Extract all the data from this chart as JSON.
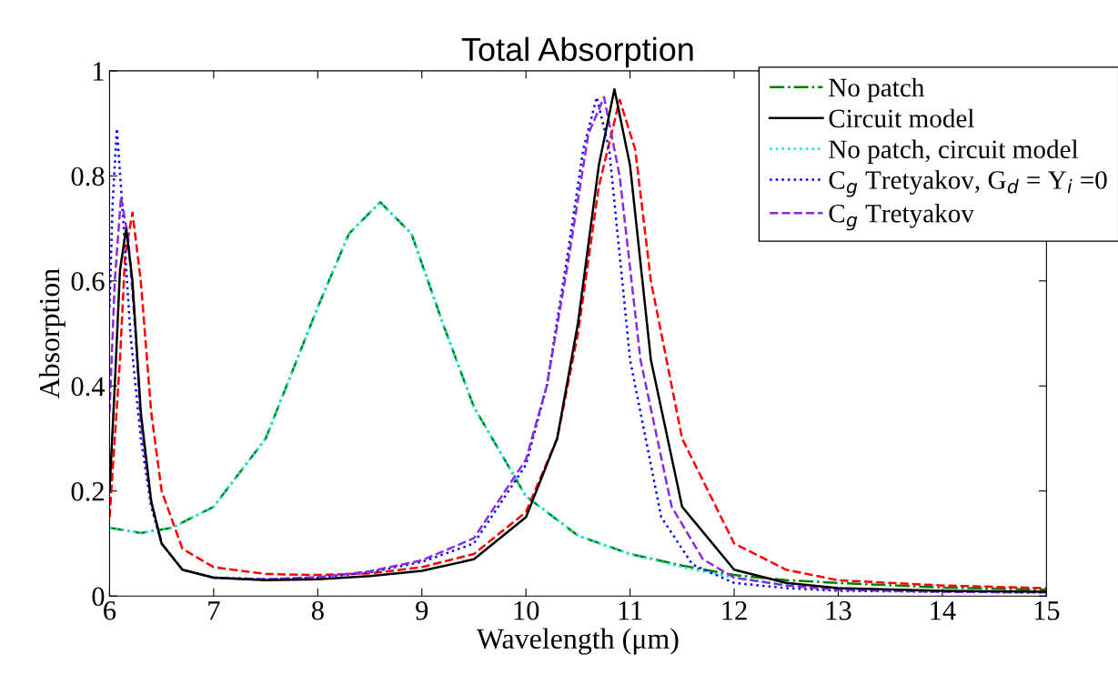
{
  "chart_data": {
    "type": "line",
    "title": "Total Absorption",
    "xlabel": "Wavelength (μm)",
    "ylabel": "Absorption",
    "xlim": [
      6,
      15
    ],
    "xticks": [
      6,
      7,
      8,
      9,
      10,
      11,
      12,
      13,
      14,
      15
    ],
    "ylim": [
      0,
      1
    ],
    "yticks": [
      0,
      0.2,
      0.4,
      0.6,
      0.8,
      1
    ],
    "grid": false,
    "legend": "top right",
    "series": [
      {
        "name": "No patch",
        "color": "#008000",
        "line_style": "dashdot",
        "x": [
          6,
          6.3,
          6.6,
          7,
          7.5,
          8,
          8.3,
          8.6,
          8.9,
          9.2,
          9.5,
          10,
          10.5,
          11,
          11.5,
          12,
          12.5,
          13,
          14,
          15
        ],
        "values": [
          0.13,
          0.12,
          0.13,
          0.17,
          0.3,
          0.55,
          0.69,
          0.75,
          0.69,
          0.52,
          0.36,
          0.19,
          0.115,
          0.08,
          0.058,
          0.04,
          0.03,
          0.025,
          0.016,
          0.012
        ]
      },
      {
        "name": "Circuit model",
        "color": "#000000",
        "line_style": "solid",
        "x": [
          6,
          6.05,
          6.1,
          6.16,
          6.22,
          6.3,
          6.4,
          6.5,
          6.7,
          7,
          7.5,
          8,
          8.5,
          9,
          9.5,
          10,
          10.3,
          10.5,
          10.7,
          10.85,
          11,
          11.2,
          11.5,
          12,
          12.5,
          13,
          14,
          15
        ],
        "values": [
          0.2,
          0.4,
          0.62,
          0.7,
          0.6,
          0.35,
          0.18,
          0.1,
          0.05,
          0.035,
          0.03,
          0.032,
          0.038,
          0.048,
          0.07,
          0.15,
          0.3,
          0.52,
          0.82,
          0.965,
          0.82,
          0.45,
          0.17,
          0.05,
          0.025,
          0.015,
          0.01,
          0.008
        ]
      },
      {
        "color": "#ff0000",
        "line_style": "dashed",
        "x": [
          6,
          6.1,
          6.15,
          6.22,
          6.3,
          6.4,
          6.5,
          6.7,
          7,
          7.5,
          8,
          8.5,
          9,
          9.5,
          10,
          10.3,
          10.5,
          10.7,
          10.9,
          11.05,
          11.2,
          11.5,
          12,
          12.5,
          13,
          14,
          15
        ],
        "values": [
          0.15,
          0.45,
          0.65,
          0.73,
          0.6,
          0.35,
          0.2,
          0.09,
          0.055,
          0.042,
          0.04,
          0.043,
          0.055,
          0.08,
          0.16,
          0.3,
          0.5,
          0.78,
          0.945,
          0.85,
          0.6,
          0.3,
          0.1,
          0.05,
          0.03,
          0.02,
          0.015
        ]
      },
      {
        "name": "No patch, circuit model",
        "color": "#00e5ee",
        "line_style": "dotted",
        "x": [
          6,
          6.3,
          6.6,
          7,
          7.5,
          8,
          8.3,
          8.6,
          8.9,
          9.2,
          9.5,
          10,
          10.5,
          11,
          11.5,
          12,
          12.5,
          13,
          14,
          15
        ],
        "values": [
          0.13,
          0.12,
          0.13,
          0.17,
          0.3,
          0.55,
          0.69,
          0.75,
          0.69,
          0.52,
          0.36,
          0.19,
          0.115,
          0.08,
          0.055,
          0.035,
          0.022,
          0.015,
          0.008,
          0.006
        ]
      },
      {
        "name": "C$_{g}$ Tretyakov, G$_{d}$ = Y$_{i}$ =0",
        "color": "#0000ff",
        "line_style": "dotted",
        "x": [
          6,
          6.03,
          6.07,
          6.12,
          6.2,
          6.3,
          6.4,
          6.5,
          6.7,
          7,
          7.5,
          8,
          8.5,
          9,
          9.5,
          10,
          10.2,
          10.4,
          10.55,
          10.68,
          10.8,
          11,
          11.3,
          11.6,
          12,
          12.5,
          13,
          14,
          15
        ],
        "values": [
          0.55,
          0.75,
          0.89,
          0.75,
          0.5,
          0.3,
          0.17,
          0.1,
          0.05,
          0.035,
          0.032,
          0.035,
          0.045,
          0.065,
          0.1,
          0.25,
          0.4,
          0.65,
          0.85,
          0.95,
          0.85,
          0.45,
          0.15,
          0.06,
          0.025,
          0.015,
          0.01,
          0.008,
          0.007
        ]
      },
      {
        "name": "C$_{g}$ Tretyakov",
        "color": "#8a2be2",
        "line_style": "dashed",
        "x": [
          6,
          6.05,
          6.11,
          6.18,
          6.25,
          6.3,
          6.4,
          6.5,
          6.7,
          7,
          7.5,
          8,
          8.5,
          9,
          9.5,
          10,
          10.2,
          10.4,
          10.6,
          10.75,
          10.9,
          11.1,
          11.4,
          11.7,
          12,
          12.5,
          13,
          14,
          15
        ],
        "values": [
          0.35,
          0.6,
          0.76,
          0.68,
          0.5,
          0.33,
          0.18,
          0.1,
          0.05,
          0.035,
          0.032,
          0.036,
          0.047,
          0.068,
          0.11,
          0.26,
          0.4,
          0.63,
          0.88,
          0.95,
          0.8,
          0.45,
          0.17,
          0.07,
          0.035,
          0.02,
          0.012,
          0.008,
          0.007
        ]
      }
    ]
  }
}
